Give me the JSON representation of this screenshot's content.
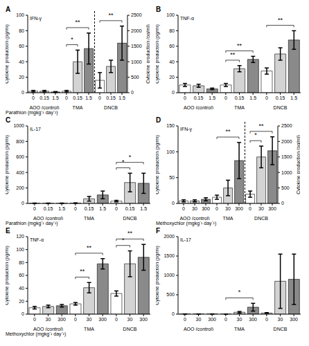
{
  "chart_data": [
    {
      "type": "bar",
      "label": "A",
      "title": "IFN-γ",
      "y_label": "Cytokine production (pg/ml)",
      "x_label": "Parathion (mgkg⁻¹ day⁻¹)",
      "categories": [
        0,
        0.15,
        1.5
      ],
      "colors": [
        "#ffffff",
        "#d3d3d3",
        "#8a8a8a"
      ],
      "ylim": [
        0,
        100
      ],
      "yticks": [
        0,
        20,
        40,
        60,
        80,
        100
      ],
      "y2lim": [
        0,
        2500
      ],
      "y2ticks": [
        0,
        500,
        1000,
        1500,
        2000,
        2500
      ],
      "series": [
        {
          "name": "AOO (control)",
          "values": [
            2,
            2,
            1
          ],
          "errors": [
            1,
            1,
            0.5
          ]
        },
        {
          "name": "TMA",
          "values": [
            2,
            40,
            57
          ],
          "errors": [
            1,
            15,
            20
          ]
        },
        {
          "name": "DNCB",
          "axis": "y2",
          "values": [
            400,
            850,
            1600
          ],
          "errors": [
            250,
            200,
            550
          ]
        }
      ],
      "significance": [
        {
          "series": "TMA",
          "from": 0,
          "to": 1,
          "label": "*"
        },
        {
          "series": "TMA",
          "from": 0,
          "to": 2,
          "label": "**"
        },
        {
          "series": "DNCB",
          "from": 0,
          "to": 2,
          "label": "**"
        }
      ]
    },
    {
      "type": "bar",
      "label": "B",
      "title": "TNF-α",
      "y_label": "Cytokine production (pg/ml)",
      "categories": [
        0,
        0.15,
        1.5
      ],
      "colors": [
        "#ffffff",
        "#d3d3d3",
        "#8a8a8a"
      ],
      "ylim": [
        0,
        100
      ],
      "yticks": [
        0,
        20,
        40,
        60,
        80,
        100
      ],
      "series": [
        {
          "name": "AOO (control)",
          "values": [
            10,
            9,
            5
          ],
          "errors": [
            2,
            2,
            1
          ]
        },
        {
          "name": "TMA",
          "values": [
            10,
            31,
            43
          ],
          "errors": [
            2,
            4,
            4
          ]
        },
        {
          "name": "DNCB",
          "values": [
            28,
            50,
            68
          ],
          "errors": [
            4,
            8,
            12
          ]
        }
      ],
      "significance": [
        {
          "series": "TMA",
          "from": 0,
          "to": 1,
          "label": "**"
        },
        {
          "series": "TMA",
          "from": 0,
          "to": 2,
          "label": "**"
        },
        {
          "series": "DNCB",
          "from": 0,
          "to": 2,
          "label": "**"
        }
      ]
    },
    {
      "type": "bar",
      "label": "C",
      "title": "IL-17",
      "y_label": "Cytokine production (pg/ml)",
      "x_label": "Parathion (mgkg⁻¹ day⁻¹)",
      "categories": [
        0,
        0.15,
        1.5
      ],
      "colors": [
        "#ffffff",
        "#d3d3d3",
        "#8a8a8a"
      ],
      "ylim": [
        0,
        1000
      ],
      "yticks": [
        0,
        200,
        400,
        600,
        800,
        1000
      ],
      "series": [
        {
          "name": "AOO (control)",
          "values": [
            3,
            3,
            3
          ],
          "errors": [
            2,
            2,
            2
          ]
        },
        {
          "name": "TMA",
          "values": [
            5,
            60,
            110
          ],
          "errors": [
            3,
            30,
            50
          ]
        },
        {
          "name": "DNCB",
          "values": [
            30,
            270,
            260
          ],
          "errors": [
            10,
            120,
            130
          ]
        }
      ],
      "significance": [
        {
          "series": "DNCB",
          "from": 0,
          "to": 1,
          "label": "*"
        },
        {
          "series": "DNCB",
          "from": 0,
          "to": 2,
          "label": "*"
        }
      ]
    },
    {
      "type": "bar",
      "label": "D",
      "title": "IFN-γ",
      "y_label": "Cytokine production (pg/ml)",
      "x_label": "Methoxychlor (mgkg⁻¹ day⁻¹)",
      "categories": [
        0,
        30,
        300
      ],
      "colors": [
        "#ffffff",
        "#d3d3d3",
        "#8a8a8a"
      ],
      "ylim": [
        0,
        150
      ],
      "yticks": [
        0,
        50,
        100,
        150
      ],
      "y2lim": [
        0,
        2500
      ],
      "y2ticks": [
        0,
        500,
        1000,
        1500,
        2000,
        2500
      ],
      "series": [
        {
          "name": "AOO (control)",
          "values": [
            5,
            5,
            8
          ],
          "errors": [
            2,
            2,
            3
          ]
        },
        {
          "name": "TMA",
          "values": [
            12,
            30,
            83
          ],
          "errors": [
            4,
            15,
            35
          ]
        },
        {
          "name": "DNCB",
          "axis": "y2",
          "values": [
            300,
            1500,
            1700
          ],
          "errors": [
            100,
            350,
            450
          ]
        }
      ],
      "significance": [
        {
          "series": "TMA",
          "from": 0,
          "to": 2,
          "label": "**"
        },
        {
          "series": "DNCB",
          "from": 0,
          "to": 1,
          "label": "*"
        },
        {
          "series": "DNCB",
          "from": 0,
          "to": 2,
          "label": "**"
        }
      ]
    },
    {
      "type": "bar",
      "label": "E",
      "title": "TNF-α",
      "y_label": "Cytokine production (pg/ml)",
      "x_label": "Methoxychlor (mgkg⁻¹ day⁻¹)",
      "categories": [
        0,
        30,
        300
      ],
      "colors": [
        "#ffffff",
        "#d3d3d3",
        "#8a8a8a"
      ],
      "ylim": [
        0,
        120
      ],
      "yticks": [
        0,
        20,
        40,
        60,
        80,
        100,
        120
      ],
      "series": [
        {
          "name": "AOO (control)",
          "values": [
            10,
            12,
            13
          ],
          "errors": [
            2,
            2,
            2
          ]
        },
        {
          "name": "TMA",
          "values": [
            16,
            41,
            78
          ],
          "errors": [
            2,
            8,
            8
          ]
        },
        {
          "name": "DNCB",
          "values": [
            32,
            78,
            88
          ],
          "errors": [
            4,
            20,
            20
          ]
        }
      ],
      "significance": [
        {
          "series": "TMA",
          "from": 0,
          "to": 1,
          "label": "**"
        },
        {
          "series": "TMA",
          "from": 0,
          "to": 2,
          "label": "**"
        },
        {
          "series": "DNCB",
          "from": 0,
          "to": 1,
          "label": "*"
        },
        {
          "series": "DNCB",
          "from": 0,
          "to": 2,
          "label": "**"
        }
      ]
    },
    {
      "type": "bar",
      "label": "F",
      "title": "IL-17",
      "y_label": "Cytokine production (pg/ml)",
      "categories": [
        0,
        30,
        300
      ],
      "colors": [
        "#ffffff",
        "#d3d3d3",
        "#8a8a8a"
      ],
      "ylim": [
        0,
        2000
      ],
      "yticks": [
        0,
        500,
        1000,
        1500,
        2000
      ],
      "series": [
        {
          "name": "AOO (control)",
          "values": [
            5,
            5,
            5
          ],
          "errors": [
            2,
            2,
            2
          ]
        },
        {
          "name": "TMA",
          "values": [
            3,
            50,
            180
          ],
          "errors": [
            2,
            20,
            100
          ]
        },
        {
          "name": "DNCB",
          "values": [
            30,
            850,
            900
          ],
          "errors": [
            10,
            700,
            650
          ]
        }
      ],
      "significance": [
        {
          "series": "TMA",
          "from": 0,
          "to": 2,
          "label": "*"
        }
      ]
    }
  ]
}
